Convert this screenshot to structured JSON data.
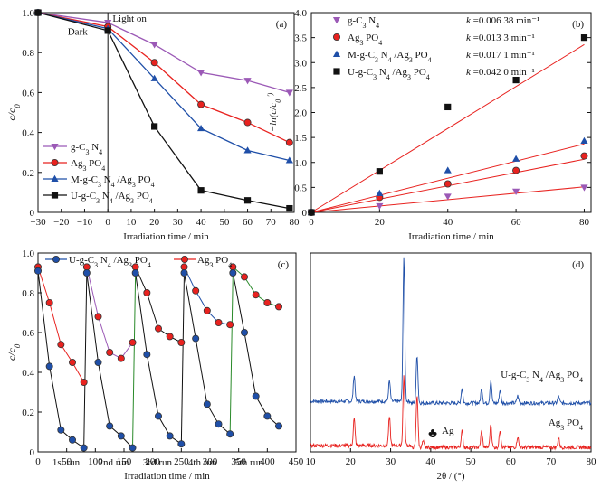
{
  "chart_data": [
    {
      "panel": "(a)",
      "type": "line",
      "xlabel": "Irradiation time / min",
      "ylabel": "c/c0",
      "xlim": [
        -30,
        80
      ],
      "ylim": [
        0,
        1.0
      ],
      "xticks": [
        "−30",
        "−20",
        "−10",
        "0",
        "10",
        "20",
        "30",
        "40",
        "50",
        "60",
        "70",
        "80"
      ],
      "yticks": [
        "0",
        "0.2",
        "0.4",
        "0.6",
        "0.8",
        "1.0"
      ],
      "annotations": [
        "Dark",
        "Light on"
      ],
      "legend_position": "bottom-left",
      "series": [
        {
          "name": "g-C3N4",
          "color": "#9b59b6",
          "marker": "triangle-down",
          "x": [
            -30,
            0,
            20,
            40,
            60,
            78
          ],
          "y": [
            1.0,
            0.95,
            0.84,
            0.7,
            0.66,
            0.6
          ]
        },
        {
          "name": "Ag3PO4",
          "color": "#e8221f",
          "marker": "circle",
          "x": [
            -30,
            0,
            20,
            40,
            60,
            78
          ],
          "y": [
            1.0,
            0.93,
            0.75,
            0.54,
            0.45,
            0.35
          ]
        },
        {
          "name": "M-g-C3N4/Ag3PO4",
          "color": "#1f4fa8",
          "marker": "triangle-up",
          "x": [
            -30,
            0,
            20,
            40,
            60,
            78
          ],
          "y": [
            1.0,
            0.92,
            0.67,
            0.42,
            0.31,
            0.26
          ]
        },
        {
          "name": "U-g-C3N4/Ag3PO4",
          "color": "#111111",
          "marker": "square",
          "x": [
            -30,
            0,
            20,
            40,
            60,
            78
          ],
          "y": [
            1.0,
            0.91,
            0.43,
            0.11,
            0.06,
            0.02
          ]
        }
      ]
    },
    {
      "panel": "(b)",
      "type": "scatter",
      "xlabel": "Irradiation time / min",
      "ylabel": "−ln(c/c0′)",
      "xlim": [
        0,
        80
      ],
      "ylim": [
        0,
        4.0
      ],
      "xticks": [
        "0",
        "20",
        "40",
        "60",
        "80"
      ],
      "yticks": [
        "0",
        "0.5",
        "1.0",
        "1.5",
        "2.0",
        "2.5",
        "3.0",
        "3.5",
        "4.0"
      ],
      "legend_position": "top-left",
      "series": [
        {
          "name": "g-C3N4",
          "k_label": "k =0.006 38 min⁻¹",
          "k": 0.00638,
          "color": "#9b59b6",
          "marker": "triangle-down",
          "x": [
            0,
            20,
            40,
            60,
            80
          ],
          "y": [
            0.0,
            0.13,
            0.32,
            0.42,
            0.5
          ]
        },
        {
          "name": "Ag3PO4",
          "k_label": "k =0.013 3 min⁻¹",
          "k": 0.0133,
          "color": "#e8221f",
          "marker": "circle",
          "x": [
            0,
            20,
            40,
            60,
            80
          ],
          "y": [
            0.0,
            0.3,
            0.57,
            0.84,
            1.13
          ]
        },
        {
          "name": "M-g-C3N4/Ag3PO4",
          "k_label": "k =0.017 1 min⁻¹",
          "k": 0.0171,
          "color": "#1f4fa8",
          "marker": "triangle-up",
          "x": [
            0,
            20,
            40,
            60,
            80
          ],
          "y": [
            0.0,
            0.38,
            0.84,
            1.07,
            1.43
          ]
        },
        {
          "name": "U-g-C3N4/Ag3PO4",
          "k_label": "k =0.042 0  min⁻¹",
          "k": 0.042,
          "color": "#111111",
          "marker": "square",
          "x": [
            0,
            20,
            40,
            60,
            80
          ],
          "y": [
            0.0,
            0.82,
            2.11,
            2.65,
            3.5
          ]
        }
      ]
    },
    {
      "panel": "(c)",
      "type": "line",
      "xlabel": "Irradiation time / min",
      "ylabel": "c/c0",
      "xlim": [
        0,
        450
      ],
      "ylim": [
        0,
        1.0
      ],
      "xticks": [
        "0",
        "50",
        "100",
        "150",
        "200",
        "250",
        "300",
        "350",
        "400",
        "450"
      ],
      "yticks": [
        "0",
        "0.2",
        "0.4",
        "0.6",
        "0.8",
        "1.0"
      ],
      "legend_position": "top",
      "run_labels": [
        {
          "text": "1st run",
          "x": 25,
          "y": 0.35
        },
        {
          "text": "2nd run",
          "x": 105,
          "y": 0.35
        },
        {
          "text": "3rd run",
          "x": 183,
          "y": 0.35
        },
        {
          "text": "4th run",
          "x": 262,
          "y": 0.35
        },
        {
          "text": "5th run",
          "x": 343,
          "y": 0.35
        }
      ],
      "series": [
        {
          "name": "U-g-C3N4/Ag3PO4",
          "color": "#1f4fa8",
          "marker": "circle",
          "runs": [
            {
              "x": [
                0,
                20,
                40,
                60,
                80
              ],
              "y": [
                0.91,
                0.43,
                0.11,
                0.06,
                0.02
              ]
            },
            {
              "x": [
                85,
                105,
                125,
                145,
                165
              ],
              "y": [
                0.9,
                0.45,
                0.13,
                0.08,
                0.02
              ]
            },
            {
              "x": [
                170,
                190,
                210,
                230,
                250
              ],
              "y": [
                0.9,
                0.49,
                0.18,
                0.08,
                0.04
              ]
            },
            {
              "x": [
                255,
                275,
                295,
                315,
                335
              ],
              "y": [
                0.9,
                0.57,
                0.24,
                0.14,
                0.09
              ]
            },
            {
              "x": [
                340,
                360,
                380,
                400,
                420
              ],
              "y": [
                0.9,
                0.6,
                0.28,
                0.18,
                0.13
              ]
            }
          ],
          "links": [
            {
              "x": [
                80,
                85
              ],
              "y": [
                0.02,
                0.9
              ],
              "color": "#111111"
            },
            {
              "x": [
                165,
                170
              ],
              "y": [
                0.02,
                0.9
              ],
              "color": "#2a8a2a"
            },
            {
              "x": [
                250,
                255
              ],
              "y": [
                0.04,
                0.9
              ],
              "color": "#111111"
            },
            {
              "x": [
                335,
                340
              ],
              "y": [
                0.09,
                0.9
              ],
              "color": "#2a8a2a"
            }
          ]
        },
        {
          "name": "Ag3PO4",
          "color": "#e8221f",
          "marker": "circle",
          "runs": [
            {
              "x": [
                0,
                20,
                40,
                60,
                80
              ],
              "y": [
                0.93,
                0.75,
                0.54,
                0.45,
                0.35
              ]
            },
            {
              "x": [
                85,
                105,
                125,
                145,
                165
              ],
              "y": [
                0.93,
                0.68,
                0.5,
                0.47,
                0.55
              ]
            },
            {
              "x": [
                170,
                190,
                210,
                230,
                250
              ],
              "y": [
                0.93,
                0.8,
                0.62,
                0.58,
                0.55
              ]
            },
            {
              "x": [
                255,
                275,
                295,
                315,
                335
              ],
              "y": [
                0.93,
                0.81,
                0.71,
                0.65,
                0.64
              ]
            },
            {
              "x": [
                340,
                360,
                380,
                400,
                420
              ],
              "y": [
                0.93,
                0.88,
                0.79,
                0.75,
                0.73
              ]
            }
          ]
        }
      ]
    },
    {
      "panel": "(d)",
      "type": "line",
      "subtype": "XRD pattern",
      "xlabel": "2θ / (°)",
      "xlim": [
        10,
        80
      ],
      "xticks": [
        "10",
        "20",
        "30",
        "40",
        "50",
        "60",
        "70",
        "80"
      ],
      "annotations": [
        "♣",
        "Ag"
      ],
      "series": [
        {
          "name": "U-g-C3N4/Ag3PO4",
          "color": "#1f4fa8",
          "peaks": [
            [
              20.9,
              0.18
            ],
            [
              29.7,
              0.14
            ],
            [
              33.3,
              1.0
            ],
            [
              36.6,
              0.33
            ],
            [
              47.8,
              0.1
            ],
            [
              52.7,
              0.1
            ],
            [
              55.0,
              0.16
            ],
            [
              57.3,
              0.09
            ],
            [
              61.7,
              0.05
            ],
            [
              71.9,
              0.05
            ]
          ]
        },
        {
          "name": "Ag3PO4",
          "color": "#e8221f",
          "peaks": [
            [
              20.9,
              0.23
            ],
            [
              29.7,
              0.24
            ],
            [
              33.3,
              0.6
            ],
            [
              36.6,
              0.45
            ],
            [
              38.1,
              0.05
            ],
            [
              47.8,
              0.14
            ],
            [
              52.7,
              0.14
            ],
            [
              55.0,
              0.2
            ],
            [
              57.3,
              0.15
            ],
            [
              61.7,
              0.09
            ],
            [
              71.9,
              0.08
            ]
          ]
        }
      ]
    }
  ]
}
